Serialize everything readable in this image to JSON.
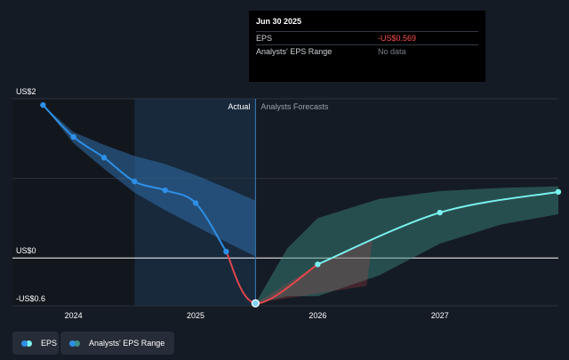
{
  "tooltip": {
    "date": "Jun 30 2025",
    "rows": [
      {
        "label": "EPS",
        "value": "-US$0.569",
        "color": "#ff4d4d"
      },
      {
        "label": "Analysts' EPS Range",
        "value": "No data",
        "color": "#7a808a"
      }
    ]
  },
  "legend": [
    {
      "label": "EPS",
      "color": "#2e8fe6",
      "color2": "#7af2f0"
    },
    {
      "label": "Analysts' EPS Range",
      "color": "#2e8fe6",
      "color2": "#3e8f82"
    }
  ],
  "colors": {
    "background": "#151b24",
    "eps_actual": "#2e8fe6",
    "eps_forecast": "#7af2f0",
    "bridge": "#e0474c",
    "range_actual": "#2f6ea8",
    "range_forecast": "#3e8f82"
  },
  "chart_data": {
    "type": "line",
    "ylabels": [
      "US$2",
      "US$0",
      "-US$0.6"
    ],
    "xlabels": [
      "2024",
      "2025",
      "2026",
      "2027"
    ],
    "region_labels": {
      "actual": "Actual",
      "forecast": "Analysts Forecasts"
    },
    "ylim": [
      -0.6,
      2
    ],
    "xlim": [
      2023.5,
      2027.97
    ],
    "highlight_date": 2025.49,
    "series": [
      {
        "name": "EPS",
        "segment": "actual",
        "x": [
          2023.75,
          2024.0,
          2024.25,
          2024.5,
          2024.75,
          2025.0,
          2025.25,
          2025.49
        ],
        "y": [
          1.92,
          1.52,
          1.26,
          0.96,
          0.85,
          0.69,
          0.08,
          -0.569
        ]
      },
      {
        "name": "EPS",
        "segment": "forecast",
        "x": [
          2025.49,
          2026.0,
          2027.0,
          2027.97
        ],
        "y": [
          -0.569,
          -0.08,
          0.57,
          0.83
        ]
      }
    ],
    "range_actual": {
      "x": [
        2023.75,
        2024.0,
        2024.25,
        2024.5,
        2024.75,
        2025.0,
        2025.25,
        2025.49
      ],
      "upper": [
        1.92,
        1.58,
        1.42,
        1.28,
        1.18,
        1.04,
        0.88,
        0.72
      ],
      "lower": [
        1.92,
        1.44,
        1.12,
        0.82,
        0.6,
        0.4,
        0.2,
        0.02
      ]
    },
    "range_forecast": {
      "x": [
        2025.49,
        2025.75,
        2026.0,
        2026.5,
        2027.0,
        2027.5,
        2027.97
      ],
      "upper": [
        -0.569,
        0.12,
        0.5,
        0.74,
        0.84,
        0.88,
        0.9
      ],
      "lower": [
        -0.569,
        -0.48,
        -0.48,
        -0.22,
        0.18,
        0.42,
        0.55
      ]
    }
  }
}
